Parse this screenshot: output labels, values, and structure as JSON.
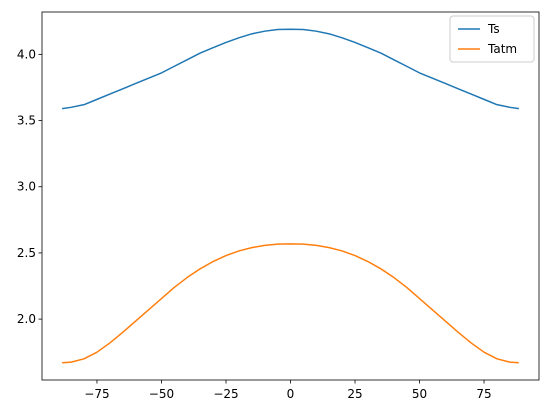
{
  "chart_data": {
    "type": "line",
    "title": "",
    "xlabel": "",
    "ylabel": "",
    "xlim": [
      -96.3,
      96.3
    ],
    "ylim": [
      1.54,
      4.32
    ],
    "xticks": [
      -75,
      -50,
      -25,
      0,
      25,
      50,
      75
    ],
    "xtick_labels": [
      "−75",
      "−50",
      "−25",
      "0",
      "25",
      "50",
      "75"
    ],
    "yticks": [
      2.0,
      2.5,
      3.0,
      3.5,
      4.0
    ],
    "ytick_labels": [
      "2.0",
      "2.5",
      "3.0",
      "3.5",
      "4.0"
    ],
    "grid": false,
    "legend_position": "top-right",
    "x": [
      -88.5,
      -85,
      -80,
      -75,
      -70,
      -65,
      -60,
      -55,
      -50,
      -45,
      -40,
      -35,
      -30,
      -25,
      -20,
      -15,
      -10,
      -5,
      0,
      5,
      10,
      15,
      20,
      25,
      30,
      35,
      40,
      45,
      50,
      55,
      60,
      65,
      70,
      75,
      80,
      85,
      88.5
    ],
    "series": [
      {
        "name": "Ts",
        "color": "#1f77b4",
        "values": [
          3.59,
          3.6,
          3.62,
          3.66,
          3.7,
          3.74,
          3.78,
          3.82,
          3.86,
          3.91,
          3.96,
          4.01,
          4.05,
          4.09,
          4.125,
          4.155,
          4.175,
          4.188,
          4.19,
          4.188,
          4.175,
          4.155,
          4.125,
          4.09,
          4.05,
          4.01,
          3.96,
          3.91,
          3.86,
          3.82,
          3.78,
          3.74,
          3.7,
          3.66,
          3.62,
          3.6,
          3.59
        ]
      },
      {
        "name": "Tatm",
        "color": "#ff7f0e",
        "values": [
          1.67,
          1.675,
          1.7,
          1.75,
          1.82,
          1.9,
          1.985,
          2.07,
          2.155,
          2.24,
          2.315,
          2.38,
          2.435,
          2.48,
          2.515,
          2.54,
          2.557,
          2.566,
          2.568,
          2.566,
          2.557,
          2.54,
          2.515,
          2.48,
          2.435,
          2.38,
          2.315,
          2.24,
          2.155,
          2.07,
          1.985,
          1.9,
          1.82,
          1.75,
          1.7,
          1.675,
          1.67
        ]
      }
    ]
  }
}
